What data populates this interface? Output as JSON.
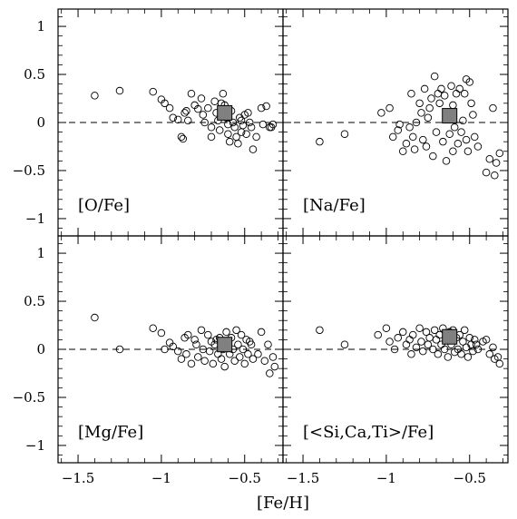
{
  "chart_data": {
    "type": "scatter",
    "xlabel": "[Fe/H]",
    "xlim": [
      -1.62,
      -0.27
    ],
    "ylim": [
      -1.18,
      1.18
    ],
    "x_ticks": [
      -1.5,
      -1,
      -0.5
    ],
    "x_tick_labels": [
      "−1.5",
      "−1",
      "−0.5"
    ],
    "y_ticks": [
      1,
      0.5,
      0,
      -0.5,
      -1
    ],
    "y_tick_labels": [
      "1",
      "0.5",
      "0",
      "−0.5",
      "−1"
    ],
    "reference_line": 0,
    "grid": false,
    "panels": [
      {
        "label": "[O/Fe]",
        "marker": [
          -0.62,
          0.1
        ],
        "stars": [
          [
            -1.4,
            0.28
          ],
          [
            -1.25,
            0.33
          ],
          [
            -1.05,
            0.32
          ],
          [
            -1.0,
            0.24
          ],
          [
            -0.98,
            0.2
          ],
          [
            -0.95,
            0.15
          ],
          [
            -0.93,
            0.05
          ],
          [
            -0.9,
            0.03
          ],
          [
            -0.88,
            -0.15
          ],
          [
            -0.87,
            -0.17
          ],
          [
            -0.86,
            0.1
          ],
          [
            -0.85,
            0.12
          ],
          [
            -0.84,
            0.02
          ],
          [
            -0.82,
            0.3
          ],
          [
            -0.8,
            0.18
          ],
          [
            -0.78,
            0.14
          ],
          [
            -0.76,
            0.25
          ],
          [
            -0.75,
            0.08
          ],
          [
            -0.74,
            0.0
          ],
          [
            -0.72,
            0.15
          ],
          [
            -0.7,
            -0.05
          ],
          [
            -0.7,
            -0.15
          ],
          [
            -0.68,
            0.22
          ],
          [
            -0.67,
            0.1
          ],
          [
            -0.66,
            0.02
          ],
          [
            -0.65,
            -0.08
          ],
          [
            -0.64,
            0.2
          ],
          [
            -0.63,
            0.3
          ],
          [
            -0.62,
            0.18
          ],
          [
            -0.61,
            0.05
          ],
          [
            -0.6,
            -0.02
          ],
          [
            -0.6,
            -0.12
          ],
          [
            -0.59,
            -0.2
          ],
          [
            -0.58,
            0.12
          ],
          [
            -0.57,
            0.0
          ],
          [
            -0.56,
            -0.05
          ],
          [
            -0.55,
            -0.15
          ],
          [
            -0.54,
            -0.22
          ],
          [
            -0.53,
            0.05
          ],
          [
            -0.52,
            -0.1
          ],
          [
            -0.52,
            0.02
          ],
          [
            -0.51,
            -0.03
          ],
          [
            -0.5,
            0.08
          ],
          [
            -0.49,
            -0.12
          ],
          [
            -0.48,
            0.1
          ],
          [
            -0.47,
            0.0
          ],
          [
            -0.46,
            -0.05
          ],
          [
            -0.45,
            -0.28
          ],
          [
            -0.43,
            -0.15
          ],
          [
            -0.4,
            0.15
          ],
          [
            -0.39,
            -0.02
          ],
          [
            -0.37,
            0.17
          ],
          [
            -0.35,
            -0.05
          ],
          [
            -0.34,
            -0.05
          ],
          [
            -0.33,
            -0.02
          ]
        ]
      },
      {
        "label": "[Na/Fe]",
        "marker": [
          -0.62,
          0.07
        ],
        "stars": [
          [
            -1.4,
            -0.2
          ],
          [
            -1.25,
            -0.12
          ],
          [
            -1.03,
            0.1
          ],
          [
            -0.98,
            0.15
          ],
          [
            -0.96,
            -0.15
          ],
          [
            -0.93,
            -0.08
          ],
          [
            -0.92,
            -0.02
          ],
          [
            -0.9,
            -0.3
          ],
          [
            -0.88,
            -0.22
          ],
          [
            -0.86,
            -0.05
          ],
          [
            -0.85,
            0.3
          ],
          [
            -0.84,
            -0.15
          ],
          [
            -0.83,
            -0.28
          ],
          [
            -0.82,
            0.0
          ],
          [
            -0.8,
            0.2
          ],
          [
            -0.79,
            0.1
          ],
          [
            -0.78,
            -0.18
          ],
          [
            -0.77,
            0.35
          ],
          [
            -0.76,
            -0.25
          ],
          [
            -0.75,
            0.05
          ],
          [
            -0.74,
            0.15
          ],
          [
            -0.73,
            0.25
          ],
          [
            -0.72,
            -0.35
          ],
          [
            -0.71,
            0.48
          ],
          [
            -0.7,
            -0.1
          ],
          [
            -0.69,
            0.3
          ],
          [
            -0.68,
            0.2
          ],
          [
            -0.67,
            0.35
          ],
          [
            -0.66,
            -0.2
          ],
          [
            -0.65,
            0.28
          ],
          [
            -0.64,
            -0.4
          ],
          [
            -0.63,
            0.05
          ],
          [
            -0.62,
            -0.12
          ],
          [
            -0.61,
            0.38
          ],
          [
            -0.6,
            0.18
          ],
          [
            -0.6,
            -0.3
          ],
          [
            -0.59,
            -0.05
          ],
          [
            -0.58,
            0.3
          ],
          [
            -0.57,
            -0.22
          ],
          [
            -0.56,
            0.35
          ],
          [
            -0.55,
            -0.1
          ],
          [
            -0.54,
            0.02
          ],
          [
            -0.53,
            0.3
          ],
          [
            -0.52,
            0.45
          ],
          [
            -0.52,
            -0.18
          ],
          [
            -0.51,
            -0.3
          ],
          [
            -0.5,
            0.42
          ],
          [
            -0.49,
            0.2
          ],
          [
            -0.48,
            0.08
          ],
          [
            -0.47,
            -0.15
          ],
          [
            -0.45,
            -0.25
          ],
          [
            -0.4,
            -0.52
          ],
          [
            -0.38,
            -0.38
          ],
          [
            -0.36,
            0.15
          ],
          [
            -0.35,
            -0.55
          ],
          [
            -0.34,
            -0.42
          ],
          [
            -0.32,
            -0.32
          ]
        ]
      },
      {
        "label": "[Mg/Fe]",
        "marker": [
          -0.62,
          0.05
        ],
        "stars": [
          [
            -1.4,
            0.33
          ],
          [
            -1.25,
            0.0
          ],
          [
            -1.05,
            0.22
          ],
          [
            -1.0,
            0.17
          ],
          [
            -0.98,
            0.0
          ],
          [
            -0.95,
            0.07
          ],
          [
            -0.93,
            0.03
          ],
          [
            -0.9,
            -0.02
          ],
          [
            -0.88,
            -0.1
          ],
          [
            -0.86,
            0.12
          ],
          [
            -0.85,
            -0.05
          ],
          [
            -0.84,
            0.15
          ],
          [
            -0.82,
            -0.15
          ],
          [
            -0.8,
            0.1
          ],
          [
            -0.79,
            0.05
          ],
          [
            -0.78,
            -0.08
          ],
          [
            -0.76,
            0.2
          ],
          [
            -0.75,
            0.0
          ],
          [
            -0.74,
            -0.12
          ],
          [
            -0.72,
            0.15
          ],
          [
            -0.71,
            -0.02
          ],
          [
            -0.7,
            0.08
          ],
          [
            -0.69,
            -0.15
          ],
          [
            -0.68,
            0.05
          ],
          [
            -0.67,
            0.1
          ],
          [
            -0.66,
            -0.05
          ],
          [
            -0.65,
            0.12
          ],
          [
            -0.64,
            -0.1
          ],
          [
            -0.63,
            0.0
          ],
          [
            -0.62,
            -0.18
          ],
          [
            -0.61,
            0.18
          ],
          [
            -0.6,
            0.08
          ],
          [
            -0.59,
            -0.05
          ],
          [
            -0.58,
            0.12
          ],
          [
            -0.57,
            0.0
          ],
          [
            -0.56,
            -0.12
          ],
          [
            -0.55,
            0.2
          ],
          [
            -0.54,
            0.05
          ],
          [
            -0.53,
            -0.08
          ],
          [
            -0.52,
            0.15
          ],
          [
            -0.51,
            0.0
          ],
          [
            -0.5,
            -0.15
          ],
          [
            -0.49,
            0.1
          ],
          [
            -0.48,
            -0.05
          ],
          [
            -0.47,
            0.08
          ],
          [
            -0.46,
            0.05
          ],
          [
            -0.45,
            -0.1
          ],
          [
            -0.42,
            -0.05
          ],
          [
            -0.4,
            0.18
          ],
          [
            -0.38,
            -0.12
          ],
          [
            -0.36,
            0.05
          ],
          [
            -0.35,
            -0.25
          ],
          [
            -0.33,
            -0.08
          ],
          [
            -0.32,
            -0.18
          ]
        ]
      },
      {
        "label": "[<Si,Ca,Ti>/Fe]",
        "marker": [
          -0.62,
          0.13
        ],
        "stars": [
          [
            -1.4,
            0.2
          ],
          [
            -1.25,
            0.05
          ],
          [
            -1.05,
            0.15
          ],
          [
            -1.0,
            0.22
          ],
          [
            -0.98,
            0.08
          ],
          [
            -0.95,
            0.0
          ],
          [
            -0.93,
            0.12
          ],
          [
            -0.9,
            0.18
          ],
          [
            -0.88,
            0.05
          ],
          [
            -0.86,
            0.1
          ],
          [
            -0.85,
            -0.05
          ],
          [
            -0.84,
            0.15
          ],
          [
            -0.82,
            0.02
          ],
          [
            -0.8,
            0.22
          ],
          [
            -0.79,
            0.08
          ],
          [
            -0.78,
            -0.02
          ],
          [
            -0.76,
            0.18
          ],
          [
            -0.75,
            0.05
          ],
          [
            -0.74,
            0.12
          ],
          [
            -0.72,
            0.0
          ],
          [
            -0.71,
            0.2
          ],
          [
            -0.7,
            0.1
          ],
          [
            -0.69,
            -0.05
          ],
          [
            -0.68,
            0.15
          ],
          [
            -0.67,
            0.05
          ],
          [
            -0.66,
            0.22
          ],
          [
            -0.65,
            0.0
          ],
          [
            -0.64,
            0.12
          ],
          [
            -0.63,
            -0.08
          ],
          [
            -0.62,
            0.18
          ],
          [
            -0.61,
            0.05
          ],
          [
            -0.6,
            0.2
          ],
          [
            -0.59,
            -0.03
          ],
          [
            -0.58,
            0.12
          ],
          [
            -0.57,
            0.0
          ],
          [
            -0.56,
            0.15
          ],
          [
            -0.55,
            -0.05
          ],
          [
            -0.54,
            0.08
          ],
          [
            -0.53,
            0.2
          ],
          [
            -0.52,
            0.02
          ],
          [
            -0.51,
            -0.08
          ],
          [
            -0.5,
            0.12
          ],
          [
            -0.49,
            0.05
          ],
          [
            -0.48,
            -0.02
          ],
          [
            -0.47,
            0.1
          ],
          [
            -0.46,
            0.05
          ],
          [
            -0.45,
            0.0
          ],
          [
            -0.42,
            0.08
          ],
          [
            -0.4,
            0.1
          ],
          [
            -0.38,
            -0.05
          ],
          [
            -0.36,
            0.02
          ],
          [
            -0.35,
            -0.1
          ],
          [
            -0.33,
            -0.08
          ],
          [
            -0.32,
            -0.15
          ]
        ]
      }
    ]
  }
}
